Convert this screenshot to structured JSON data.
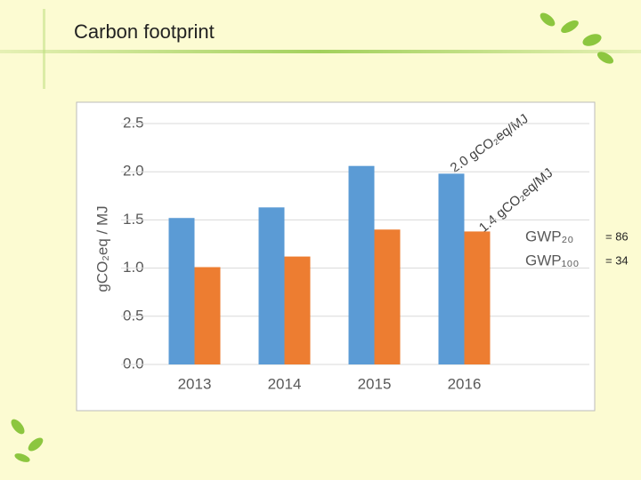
{
  "chart_data": {
    "type": "bar",
    "title": "Carbon footprint",
    "y_label": "gCO₂eq / MJ",
    "categories": [
      "2013",
      "2014",
      "2015",
      "2016"
    ],
    "series": [
      {
        "name": "GWP₂₀",
        "color": "#5b9bd5",
        "values": [
          1.52,
          1.63,
          2.06,
          1.98
        ]
      },
      {
        "name": "GWP₁₀₀",
        "color": "#ed7d31",
        "values": [
          1.01,
          1.12,
          1.4,
          1.38
        ]
      }
    ],
    "ylim": [
      0,
      2.5
    ],
    "yticks": [
      {
        "value": 0,
        "label": "0.0"
      },
      0.5,
      {
        "value": 1,
        "label": "1.0"
      },
      1.5,
      {
        "value": 2,
        "label": "2.0"
      },
      2.5
    ],
    "grid": true,
    "annotations": [
      "2.0 gCO₂eq/MJ",
      "1.4 gCO₂eq/MJ",
      "= 86",
      "= 34"
    ]
  }
}
